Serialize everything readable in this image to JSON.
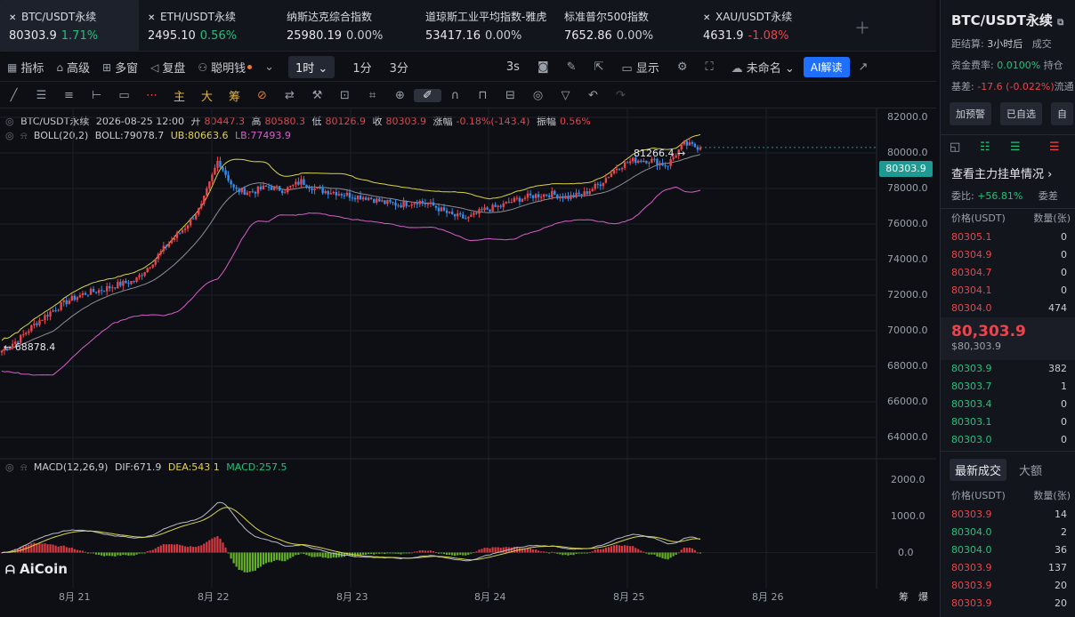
{
  "tickers": [
    {
      "name": "BTC/USDT永续",
      "value": "80303.9",
      "change": "1.71%",
      "dir": "up",
      "active": true
    },
    {
      "name": "ETH/USDT永续",
      "value": "2495.10",
      "change": "0.56%",
      "dir": "up",
      "active": false
    },
    {
      "name": "纳斯达克综合指数",
      "value": "25980.19",
      "change": "0.00%",
      "dir": "neu",
      "active": false
    },
    {
      "name": "道琼斯工业平均指数-雅虎",
      "value": "53417.16",
      "change": "0.00%",
      "dir": "neu",
      "active": false
    },
    {
      "name": "标准普尔500指数",
      "value": "7652.86",
      "change": "0.00%",
      "dir": "neu",
      "active": false
    },
    {
      "name": "XAU/USDT永续",
      "value": "4631.9",
      "change": "-1.08%",
      "dir": "dn",
      "active": false
    }
  ],
  "toolbar": {
    "indicators": "指标",
    "advanced": "高级",
    "multi": "多窗",
    "replay": "复盘",
    "smart": "聪明钱",
    "tf_selected": "1时",
    "tf1": "1分",
    "tf2": "3分",
    "refresh": "3s",
    "display": "显示",
    "unnamed": "未命名",
    "ai": "AI解读"
  },
  "drawtools": [
    "主",
    "大",
    "筹"
  ],
  "legend": {
    "symbol": "BTC/USDT永续",
    "date": "2026-08-25 12:00",
    "open_lbl": "开",
    "open": "80447.3",
    "high_lbl": "高",
    "high": "80580.3",
    "low_lbl": "低",
    "low": "80126.9",
    "close_lbl": "收",
    "close": "80303.9",
    "chg_lbl": "涨幅",
    "chg": "-0.18%(-143.4)",
    "amp_lbl": "振幅",
    "amp": "0.56%"
  },
  "boll": {
    "name": "BOLL(20,2)",
    "mid": "BOLL:79078.7",
    "ub": "UB:80663.6",
    "lb": "LB:77493.9"
  },
  "macd": {
    "name": "MACD(12,26,9)",
    "dif": "DIF:671.9",
    "dea": "DEA:543.1",
    "macd": "MACD:257.5"
  },
  "price_axis": [
    "82000.0",
    "80000.0",
    "78000.0",
    "76000.0",
    "74000.0",
    "72000.0",
    "70000.0",
    "68000.0",
    "66000.0",
    "64000.0"
  ],
  "macd_axis": [
    "2000.0",
    "1000.0",
    "0.0"
  ],
  "current_price": "80303.9",
  "high_mark": "81266.4 →",
  "low_mark": "← 68878.4",
  "x_axis": [
    "8月 21",
    "8月 22",
    "8月 23",
    "8月 24",
    "8月 25",
    "8月 26"
  ],
  "bottom_right": [
    "筹",
    "爆"
  ],
  "brand": "AiCoin",
  "chart_data": {
    "type": "candlestick",
    "candle_series": {
      "name": "BTC/USDT永续"
    },
    "close_path": [
      68878,
      69500,
      70400,
      71100,
      71700,
      72100,
      72300,
      72600,
      72800,
      73800,
      74900,
      75800,
      77000,
      79600,
      77900,
      77800,
      78100,
      77900,
      78400,
      77900,
      77800,
      77600,
      77500,
      77200,
      77100,
      77300,
      77000,
      76500,
      76300,
      76800,
      77000,
      77400,
      77600,
      77700,
      77500,
      77700,
      78300,
      79200,
      79600,
      79600,
      79300,
      80500,
      80303
    ],
    "y_range": [
      63000,
      82500
    ],
    "macd_range": [
      -700,
      2200
    ],
    "colors": {
      "up": "#e8454c",
      "down": "#2f8ff2",
      "ub": "#d9d34a",
      "mid": "#8d8f97",
      "lb": "#d95cc9",
      "dif": "#b8bcc4",
      "dea": "#d9d34a",
      "hist_up": "#d63a42",
      "hist_down": "#64b027"
    }
  },
  "panel": {
    "title": "BTC/USDT永续",
    "settle_lbl": "距结算:",
    "settle_val": "3小时后",
    "vol_lbl": "成交",
    "fund_lbl": "资金费率:",
    "fund_val": "0.0100%",
    "hold_lbl": "持仓",
    "basis_lbl": "基差:",
    "basis_val": "-17.6 (-0.022%)",
    "flow_lbl": "流通",
    "btn1": "加预警",
    "btn2": "已自选",
    "btn3": "自",
    "orders_link": "查看主力挂单情况 ›",
    "ratio_lbl": "委比:",
    "ratio_val": "+56.81%",
    "ratio2": "委差",
    "hdr_price": "价格(USDT)",
    "hdr_qty": "数量(张)",
    "asks": [
      {
        "p": "80305.1",
        "q": "0"
      },
      {
        "p": "80304.9",
        "q": "0"
      },
      {
        "p": "80304.7",
        "q": "0"
      },
      {
        "p": "80304.1",
        "q": "0"
      },
      {
        "p": "80304.0",
        "q": "474"
      }
    ],
    "last": "80,303.9",
    "last_sub": "$80,303.9",
    "bids": [
      {
        "p": "80303.9",
        "q": "382"
      },
      {
        "p": "80303.7",
        "q": "1"
      },
      {
        "p": "80303.4",
        "q": "0"
      },
      {
        "p": "80303.1",
        "q": "0"
      },
      {
        "p": "80303.0",
        "q": "0"
      }
    ],
    "tab1": "最新成交",
    "tab2": "大额",
    "trades": [
      {
        "p": "80303.9",
        "q": "14",
        "d": "dn"
      },
      {
        "p": "80304.0",
        "q": "2",
        "d": "up"
      },
      {
        "p": "80304.0",
        "q": "36",
        "d": "up"
      },
      {
        "p": "80303.9",
        "q": "137",
        "d": "dn"
      },
      {
        "p": "80303.9",
        "q": "20",
        "d": "dn"
      },
      {
        "p": "80303.9",
        "q": "20",
        "d": "dn"
      }
    ]
  }
}
